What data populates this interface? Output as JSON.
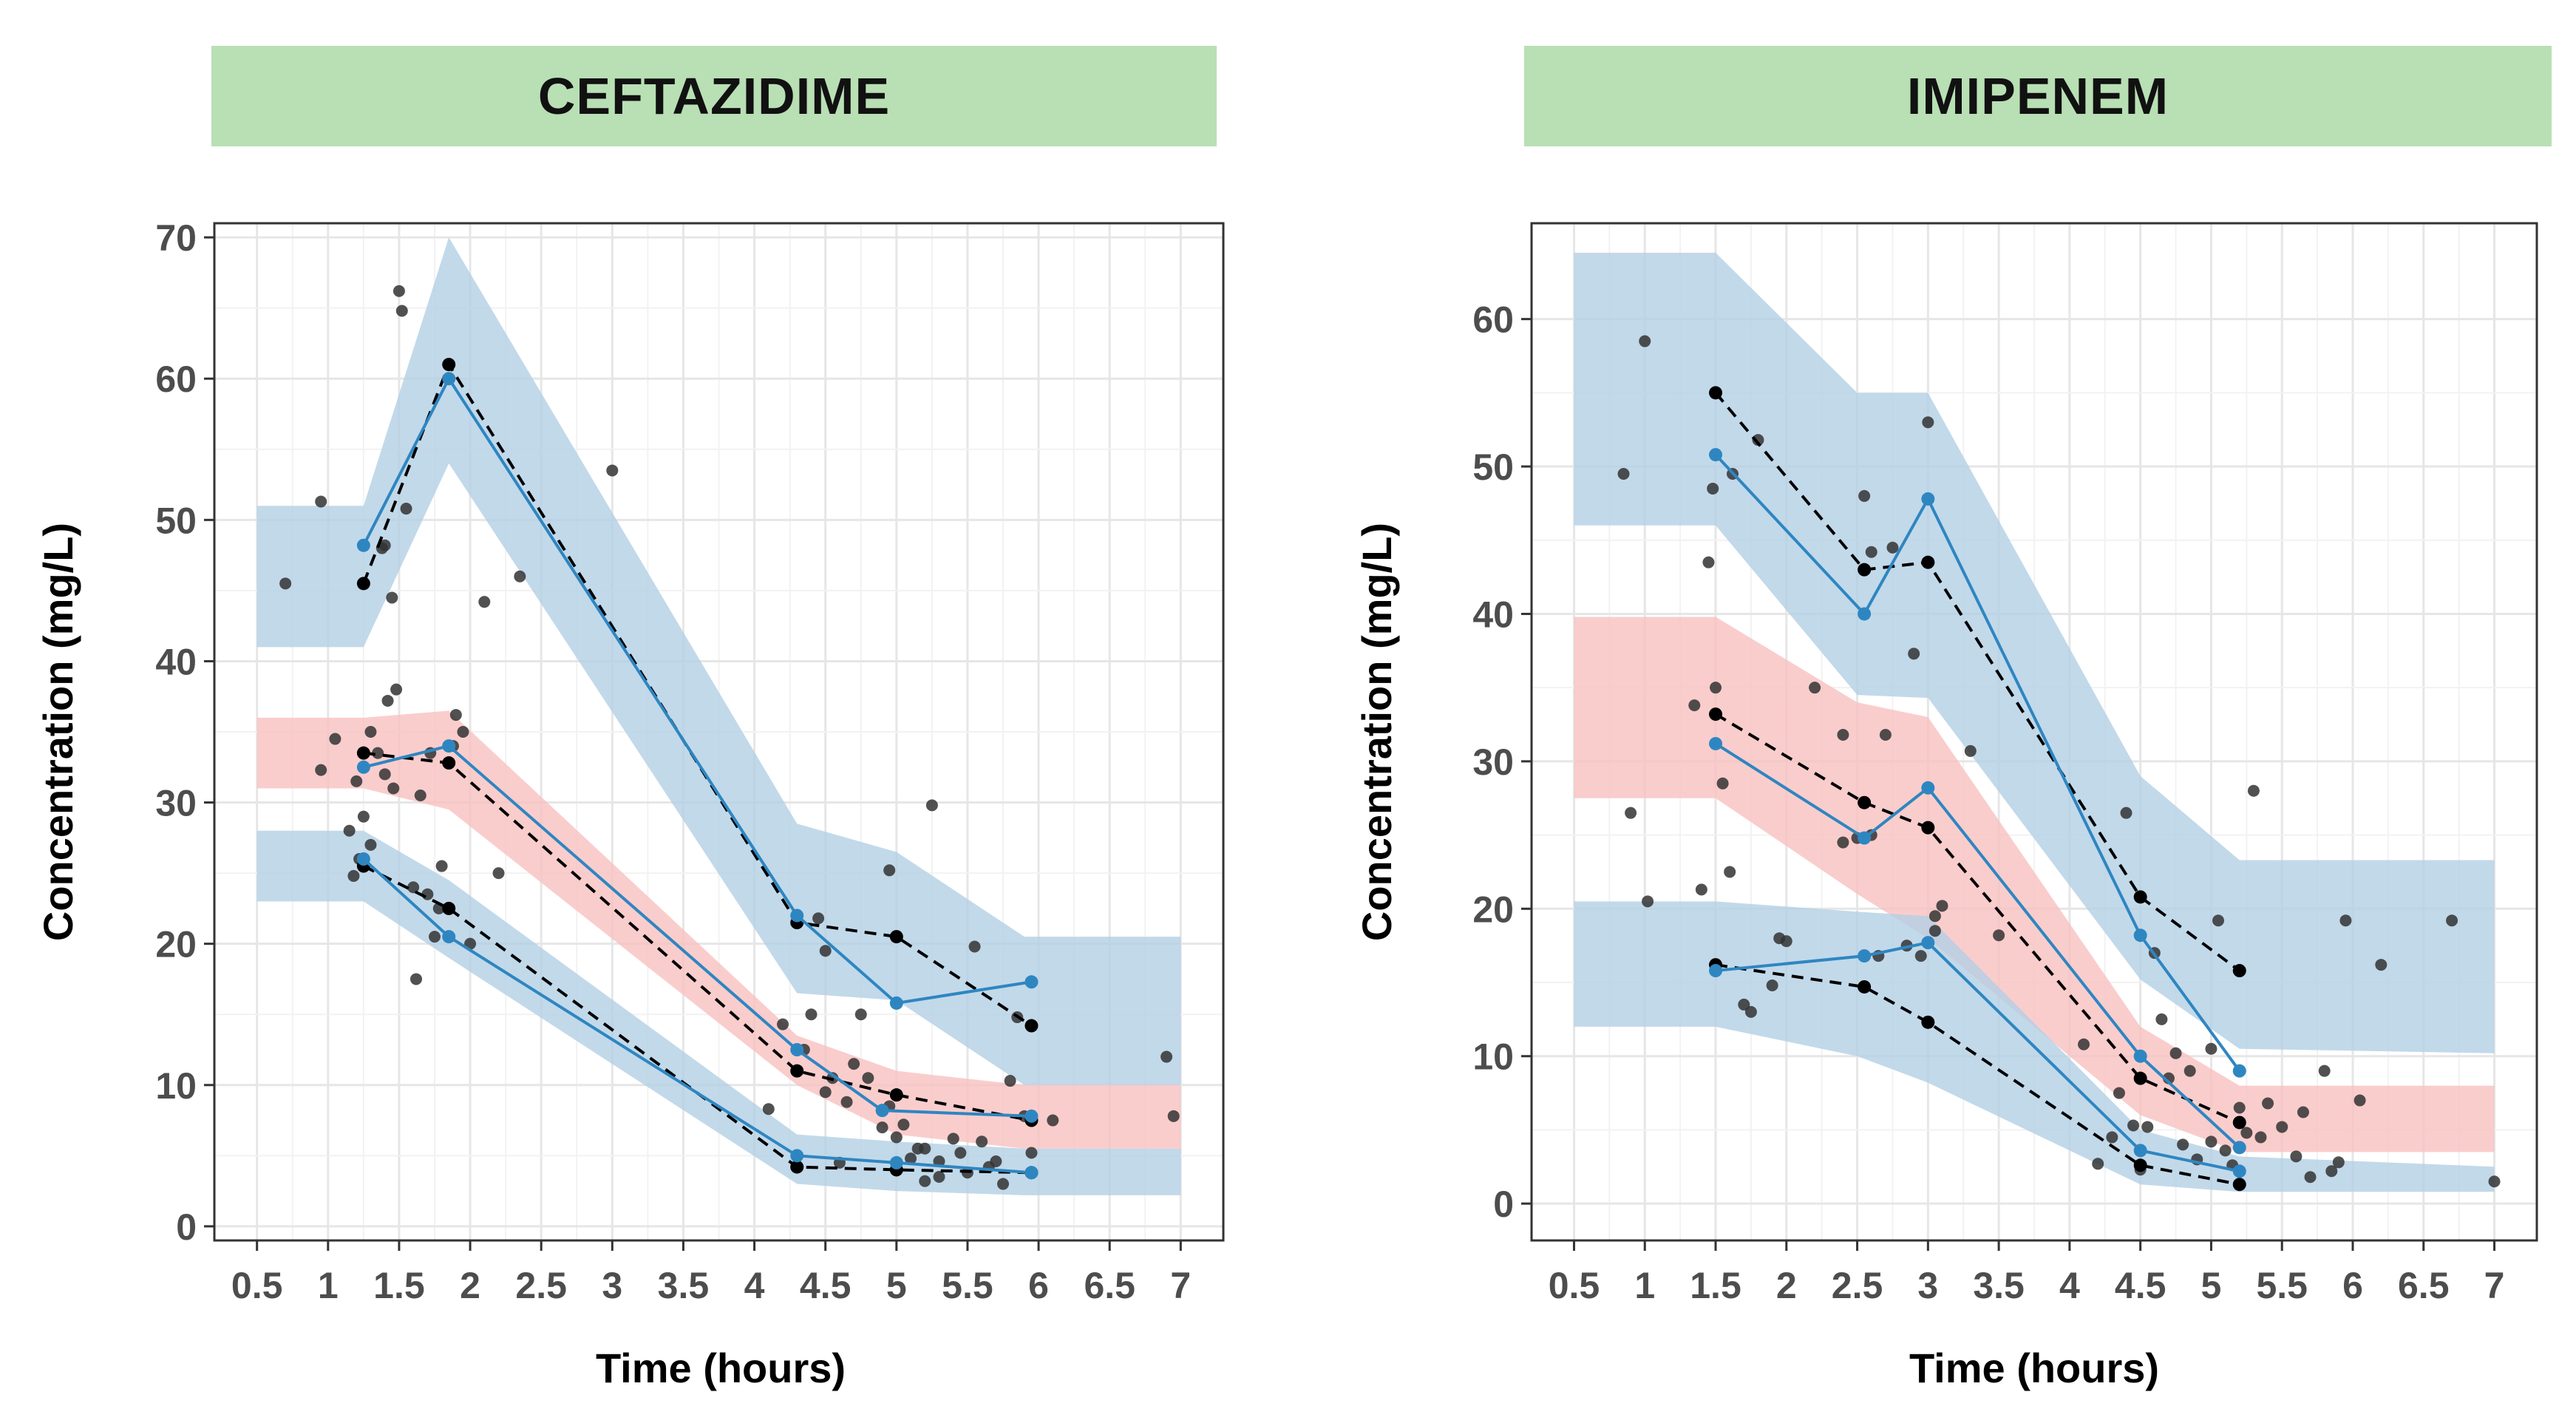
{
  "chart_data": [
    {
      "type": "line",
      "title": "CEFTAZIDIME",
      "xlabel": "Time (hours)",
      "ylabel": "Concentration (mg/L)",
      "xlim": [
        0.2,
        7.3
      ],
      "ylim": [
        -1,
        71
      ],
      "x_ticks": [
        "0.5",
        "1",
        "1.5",
        "2",
        "2.5",
        "3",
        "3.5",
        "4",
        "4.5",
        "5",
        "5.5",
        "6",
        "6.5",
        "7"
      ],
      "y_ticks": [
        "0",
        "10",
        "20",
        "30",
        "40",
        "50",
        "60",
        "70"
      ],
      "grid": true,
      "colors": {
        "band_outer": "#b3cfe5",
        "band_median": "#f9c0c0",
        "predicted": "#2e86c1",
        "observed": "#000000",
        "points": "#333333"
      },
      "bands": [
        {
          "kind": "upper",
          "x": [
            0.5,
            1.25,
            1.85,
            4.3,
            5.0,
            5.9,
            7.0
          ],
          "lower": [
            41,
            41,
            54,
            16.5,
            16,
            10,
            10
          ],
          "upper": [
            51,
            51,
            70,
            28.5,
            26.5,
            20.5,
            20.5
          ]
        },
        {
          "kind": "median",
          "x": [
            0.5,
            1.25,
            1.85,
            4.3,
            5.0,
            5.9,
            7.0
          ],
          "lower": [
            31,
            31,
            29.5,
            10,
            6.5,
            5.5,
            5.5
          ],
          "upper": [
            36,
            36,
            36.5,
            13.5,
            11,
            10,
            10
          ]
        },
        {
          "kind": "lower",
          "x": [
            0.5,
            1.25,
            1.85,
            4.3,
            5.0,
            5.9,
            7.0
          ],
          "lower": [
            23,
            23,
            19,
            3,
            2.5,
            2.2,
            2.2
          ],
          "upper": [
            28,
            28,
            24.5,
            6.5,
            6,
            5.5,
            5.5
          ]
        }
      ],
      "predicted": [
        {
          "x": [
            1.25,
            1.85,
            4.3,
            5.0,
            5.95
          ],
          "y": [
            48.2,
            60,
            22,
            15.8,
            17.3
          ]
        },
        {
          "x": [
            1.25,
            1.85,
            4.3,
            4.9,
            5.95
          ],
          "y": [
            32.5,
            34,
            12.5,
            8.2,
            7.8
          ]
        },
        {
          "x": [
            1.25,
            1.85,
            4.3,
            5.0,
            5.95
          ],
          "y": [
            26,
            20.5,
            5,
            4.5,
            3.8
          ]
        }
      ],
      "observed": [
        {
          "x": [
            1.25,
            1.85,
            4.3,
            5.0,
            5.95
          ],
          "y": [
            45.5,
            61,
            21.5,
            20.5,
            14.2
          ]
        },
        {
          "x": [
            1.25,
            1.85,
            4.3,
            5.0,
            5.95
          ],
          "y": [
            33.5,
            32.8,
            11,
            9.3,
            7.5
          ]
        },
        {
          "x": [
            1.25,
            1.85,
            4.3,
            5.0,
            5.95
          ],
          "y": [
            25.5,
            22.5,
            4.2,
            4,
            3.8
          ]
        }
      ],
      "points": {
        "x": [
          0.7,
          0.95,
          1.05,
          1.15,
          1.2,
          1.25,
          1.3,
          1.35,
          1.4,
          1.45,
          1.5,
          1.55,
          1.6,
          1.65,
          1.7,
          1.75,
          1.8,
          1.85,
          1.9,
          1.95,
          2.0,
          2.1,
          2.2,
          2.35,
          1.42,
          1.48,
          1.3,
          1.22,
          1.18,
          1.38,
          1.52,
          1.62,
          1.72,
          1.78,
          1.88,
          1.4,
          1.46,
          0.95,
          3.0,
          4.1,
          4.2,
          4.35,
          4.45,
          4.5,
          4.6,
          4.7,
          4.75,
          4.8,
          4.9,
          4.95,
          5.0,
          5.05,
          5.1,
          5.15,
          5.2,
          5.25,
          5.3,
          5.4,
          5.45,
          5.5,
          5.55,
          5.6,
          5.7,
          5.75,
          5.8,
          5.85,
          5.9,
          5.95,
          6.1,
          6.9,
          6.95,
          4.95,
          5.2,
          4.4,
          4.5,
          4.55,
          4.65,
          5.3,
          5.65
        ],
        "y": [
          45.5,
          51.3,
          34.5,
          28,
          31.5,
          29,
          35,
          33.5,
          48.2,
          44.5,
          66.2,
          50.8,
          24,
          30.5,
          23.5,
          20.5,
          25.5,
          61,
          36.2,
          35,
          20,
          44.2,
          25,
          46,
          37.2,
          38,
          27,
          26,
          24.8,
          48,
          64.8,
          17.5,
          33.5,
          22.5,
          34,
          32,
          31,
          32.3,
          53.5,
          8.3,
          14.3,
          12.5,
          21.8,
          19.5,
          4.5,
          11.5,
          15,
          10.5,
          7,
          8.5,
          6.3,
          7.2,
          4.8,
          5.5,
          3.2,
          29.8,
          4.6,
          6.2,
          5.2,
          3.8,
          19.8,
          6,
          4.6,
          3,
          10.3,
          14.8,
          7.8,
          5.2,
          7.5,
          12,
          7.8,
          25.2,
          5.5,
          15,
          9.5,
          10.5,
          8.8,
          3.5,
          4.2
        ]
      }
    },
    {
      "type": "line",
      "title": "IMIPENEM",
      "xlabel": "Time (hours)",
      "ylabel": "Concentration (mg/L)",
      "xlim": [
        0.2,
        7.3
      ],
      "ylim": [
        -2.5,
        66.5
      ],
      "x_ticks": [
        "0.5",
        "1",
        "1.5",
        "2",
        "2.5",
        "3",
        "3.5",
        "4",
        "4.5",
        "5",
        "5.5",
        "6",
        "6.5",
        "7"
      ],
      "y_ticks": [
        "0",
        "10",
        "20",
        "30",
        "40",
        "50",
        "60"
      ],
      "grid": true,
      "colors": {
        "band_outer": "#b3cfe5",
        "band_median": "#f9c0c0",
        "predicted": "#2e86c1",
        "observed": "#000000",
        "points": "#333333"
      },
      "bands": [
        {
          "kind": "upper",
          "x": [
            0.5,
            1.5,
            2.5,
            3.0,
            4.5,
            5.2,
            7.0
          ],
          "lower": [
            46,
            46,
            34.5,
            34.3,
            15.2,
            10.5,
            10.2
          ],
          "upper": [
            64.5,
            64.5,
            55,
            55,
            29,
            23.3,
            23.3
          ]
        },
        {
          "kind": "median",
          "x": [
            0.5,
            1.5,
            2.5,
            3.0,
            4.5,
            5.2,
            7.0
          ],
          "lower": [
            27.5,
            27.5,
            21,
            18,
            6,
            3.5,
            3.5
          ],
          "upper": [
            39.8,
            39.8,
            34,
            33,
            12,
            8,
            8
          ]
        },
        {
          "kind": "lower",
          "x": [
            0.5,
            1.5,
            2.5,
            3.0,
            4.5,
            5.2,
            7.0
          ],
          "lower": [
            12,
            12,
            10,
            8.2,
            1.3,
            0.8,
            0.8
          ],
          "upper": [
            20.5,
            20.5,
            19.8,
            19.5,
            5,
            3.2,
            2.5
          ]
        }
      ],
      "predicted": [
        {
          "x": [
            1.5,
            2.55,
            3.0,
            4.5,
            5.2
          ],
          "y": [
            50.8,
            40,
            47.8,
            18.2,
            9
          ]
        },
        {
          "x": [
            1.5,
            2.55,
            3.0,
            4.5,
            5.2
          ],
          "y": [
            31.2,
            24.8,
            28.2,
            10,
            3.8
          ]
        },
        {
          "x": [
            1.5,
            2.55,
            3.0,
            4.5,
            5.2
          ],
          "y": [
            15.8,
            16.8,
            17.7,
            3.6,
            2.2
          ]
        }
      ],
      "observed": [
        {
          "x": [
            1.5,
            2.55,
            3.0,
            4.5,
            5.2
          ],
          "y": [
            55,
            43,
            43.5,
            20.8,
            15.8
          ]
        },
        {
          "x": [
            1.5,
            2.55,
            3.0,
            4.5,
            5.2
          ],
          "y": [
            33.2,
            27.2,
            25.5,
            8.5,
            5.5
          ]
        },
        {
          "x": [
            1.5,
            2.55,
            3.0,
            4.5,
            5.2
          ],
          "y": [
            16.2,
            14.7,
            12.3,
            2.6,
            1.3
          ]
        }
      ],
      "points": {
        "x": [
          0.85,
          0.9,
          1.0,
          1.02,
          1.4,
          1.45,
          1.48,
          1.5,
          1.55,
          1.6,
          1.62,
          1.35,
          1.7,
          1.75,
          1.8,
          1.9,
          1.95,
          2.0,
          2.4,
          2.5,
          2.55,
          2.6,
          2.65,
          2.7,
          2.85,
          2.9,
          2.95,
          3.0,
          3.05,
          3.1,
          3.3,
          3.5,
          4.1,
          4.2,
          4.3,
          4.4,
          4.45,
          4.5,
          4.55,
          4.6,
          4.65,
          4.7,
          4.8,
          4.9,
          5.0,
          5.05,
          5.1,
          5.15,
          5.25,
          5.3,
          5.35,
          5.4,
          5.5,
          5.6,
          5.65,
          5.7,
          5.8,
          5.85,
          5.9,
          5.95,
          6.05,
          6.2,
          6.7,
          7.0,
          2.6,
          4.35,
          4.75,
          5.0,
          5.2,
          4.85,
          2.2,
          2.4,
          2.75,
          3.05
        ],
        "y": [
          49.5,
          26.5,
          58.5,
          20.5,
          21.3,
          43.5,
          48.5,
          35,
          28.5,
          22.5,
          49.5,
          33.8,
          13.5,
          13,
          51.8,
          14.8,
          18,
          17.8,
          24.5,
          24.8,
          48,
          25,
          16.8,
          31.8,
          17.5,
          37.3,
          16.8,
          53,
          19.5,
          20.2,
          30.7,
          18.2,
          10.8,
          2.7,
          4.5,
          26.5,
          5.3,
          2.3,
          5.2,
          17,
          12.5,
          8.5,
          4,
          3,
          10.5,
          19.2,
          3.6,
          2.6,
          4.8,
          28,
          4.5,
          6.8,
          5.2,
          3.2,
          6.2,
          1.8,
          9,
          2.2,
          2.8,
          19.2,
          7,
          16.2,
          19.2,
          1.5,
          44.2,
          7.5,
          10.2,
          4.2,
          6.5,
          9,
          35,
          31.8,
          44.5,
          18.5
        ]
      }
    }
  ]
}
